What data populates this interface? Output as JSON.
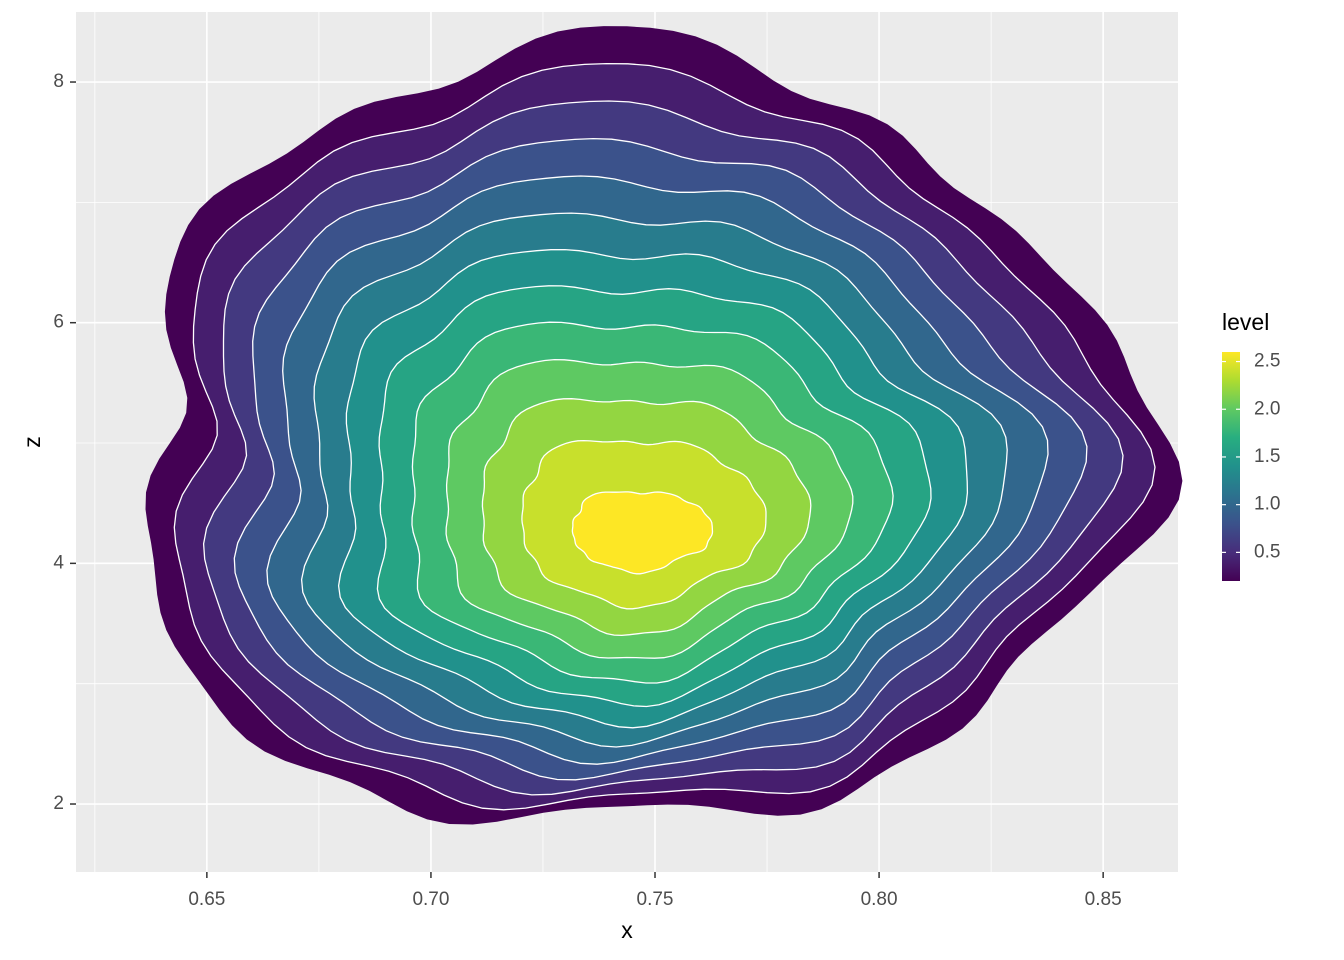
{
  "chart_data": {
    "type": "contour",
    "x_label": "x",
    "y_label": "z",
    "xlim": [
      0.6208,
      0.8667
    ],
    "ylim": [
      1.435,
      8.582
    ],
    "xticks": [
      0.65,
      {
        "value": 0.7,
        "label": "0.70"
      },
      0.75,
      {
        "value": 0.8,
        "label": "0.80"
      },
      0.85
    ],
    "yticks": [
      2,
      4,
      6,
      8
    ],
    "grid": true,
    "legend_title": "level",
    "palette": "viridis",
    "levels": [
      0.2,
      0.4,
      0.6,
      0.8,
      1.0,
      1.2,
      1.4,
      1.6,
      1.8,
      2.0,
      2.2,
      2.4,
      2.6
    ],
    "legend_ticks": [
      0.5,
      {
        "value": 1.0,
        "label": "1.0"
      },
      1.5,
      {
        "value": 2.0,
        "label": "2.0"
      },
      2.5
    ]
  }
}
